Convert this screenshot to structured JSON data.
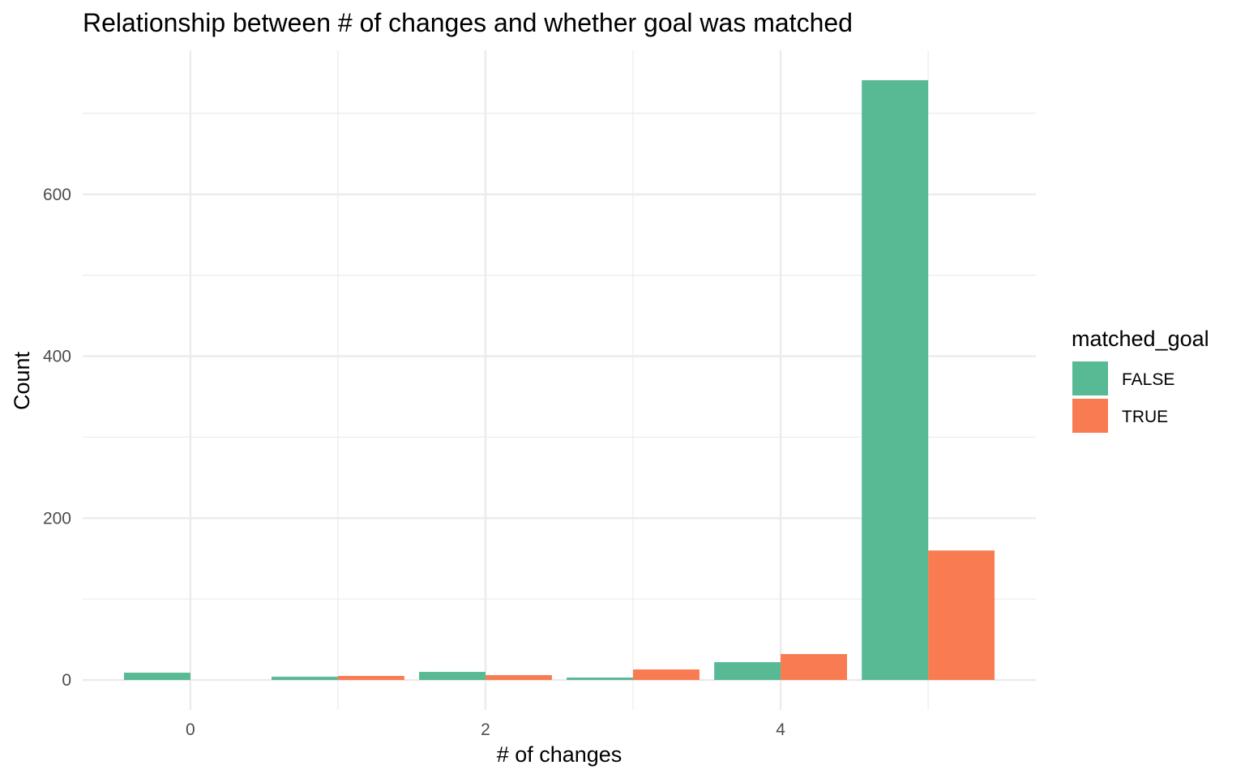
{
  "chart_data": {
    "type": "bar",
    "title": "Relationship between # of changes and whether goal was matched",
    "xlabel": "# of changes",
    "ylabel": "Count",
    "x": [
      0,
      1,
      2,
      3,
      4,
      5
    ],
    "xticks": [
      0,
      2,
      4
    ],
    "yticks": [
      0,
      200,
      400,
      600
    ],
    "xlim": [
      -0.73,
      5.73
    ],
    "ylim": [
      -37,
      778
    ],
    "grid": true,
    "legend": {
      "title": "matched_goal",
      "position": "right",
      "entries": [
        "FALSE",
        "TRUE"
      ]
    },
    "series": [
      {
        "name": "FALSE",
        "color": "#57BA94",
        "values": [
          9,
          4,
          10,
          3,
          22,
          741
        ]
      },
      {
        "name": "TRUE",
        "color": "#F97B52",
        "values": [
          0,
          5,
          6,
          13,
          32,
          160
        ]
      }
    ]
  }
}
